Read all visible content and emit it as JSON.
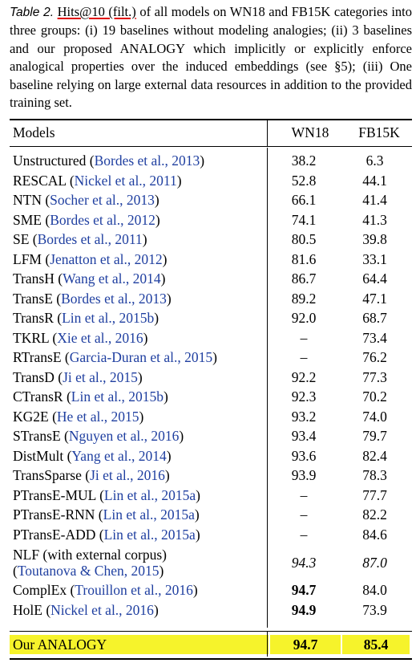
{
  "caption": {
    "label": "Table 2.",
    "metric": "Hits@10 (filt.)",
    "text": " of all models on WN18 and FB15K categories into three groups: (i) 19 baselines without modeling analogies; (ii) 3 baselines and our proposed ANALOGY which implicitly or explicitly enforce analogical properties over the induced embeddings (see §5); (iii) One baseline relying on large external data resources in addition to the provided training set."
  },
  "table": {
    "headers": {
      "models": "Models",
      "wn18": "WN18",
      "fb15k": "FB15K"
    },
    "rows": [
      {
        "name": "Unstructured (",
        "cite": "Bordes et al., 2013",
        "close": ")",
        "wn18": "38.2",
        "fb15k": "6.3"
      },
      {
        "name": "RESCAL (",
        "cite": "Nickel et al., 2011",
        "close": ")",
        "wn18": "52.8",
        "fb15k": "44.1"
      },
      {
        "name": "NTN (",
        "cite": "Socher et al., 2013",
        "close": ")",
        "wn18": "66.1",
        "fb15k": "41.4"
      },
      {
        "name": "SME (",
        "cite": "Bordes et al., 2012",
        "close": ")",
        "wn18": "74.1",
        "fb15k": "41.3"
      },
      {
        "name": "SE (",
        "cite": "Bordes et al., 2011",
        "close": ")",
        "wn18": "80.5",
        "fb15k": "39.8"
      },
      {
        "name": "LFM (",
        "cite": "Jenatton et al., 2012",
        "close": ")",
        "wn18": "81.6",
        "fb15k": "33.1"
      },
      {
        "name": "TransH (",
        "cite": "Wang et al., 2014",
        "close": ")",
        "wn18": "86.7",
        "fb15k": "64.4"
      },
      {
        "name": "TransE (",
        "cite": "Bordes et al., 2013",
        "close": ")",
        "wn18": "89.2",
        "fb15k": "47.1"
      },
      {
        "name": "TransR (",
        "cite": "Lin et al., 2015b",
        "close": ")",
        "wn18": "92.0",
        "fb15k": "68.7"
      },
      {
        "name": "TKRL (",
        "cite": "Xie et al., 2016",
        "close": ")",
        "wn18": "–",
        "fb15k": "73.4"
      },
      {
        "name": "RTransE (",
        "cite": "Garcia-Duran et al., 2015",
        "close": ")",
        "wn18": "–",
        "fb15k": "76.2"
      },
      {
        "name": "TransD (",
        "cite": "Ji et al., 2015",
        "close": ")",
        "wn18": "92.2",
        "fb15k": "77.3"
      },
      {
        "name": "CTransR (",
        "cite": "Lin et al., 2015b",
        "close": ")",
        "wn18": "92.3",
        "fb15k": "70.2"
      },
      {
        "name": "KG2E (",
        "cite": "He et al., 2015",
        "close": ")",
        "wn18": "93.2",
        "fb15k": "74.0"
      },
      {
        "name": "STransE (",
        "cite": "Nguyen et al., 2016",
        "close": ")",
        "wn18": "93.4",
        "fb15k": "79.7"
      },
      {
        "name": "DistMult (",
        "cite": "Yang et al., 2014",
        "close": ")",
        "wn18": "93.6",
        "fb15k": "82.4"
      },
      {
        "name": "TransSparse (",
        "cite": "Ji et al., 2016",
        "close": ")",
        "wn18": "93.9",
        "fb15k": "78.3"
      },
      {
        "name": "PTransE-MUL (",
        "cite": "Lin et al., 2015a",
        "close": ")",
        "wn18": "–",
        "fb15k": "77.7"
      },
      {
        "name": "PTransE-RNN (",
        "cite": "Lin et al., 2015a",
        "close": ")",
        "wn18": "–",
        "fb15k": "82.2"
      },
      {
        "name": "PTransE-ADD (",
        "cite": "Lin et al., 2015a",
        "close": ")",
        "wn18": "–",
        "fb15k": "84.6"
      }
    ],
    "nlf": {
      "line1": "NLF (with external corpus)",
      "open": "(",
      "cite": "Toutanova & Chen, 2015",
      "close": ")",
      "wn18": "94.3",
      "fb15k": "87.0"
    },
    "complex": {
      "name": "ComplEx (",
      "cite": "Trouillon et al., 2016",
      "close": ")",
      "wn18": "94.7",
      "fb15k": "84.0"
    },
    "hole": {
      "name": "HolE (",
      "cite": "Nickel et al., 2016",
      "close": ")",
      "wn18": "94.9",
      "fb15k": "73.9"
    },
    "ours": {
      "name": "Our ANALOGY",
      "wn18": "94.7",
      "fb15k": "85.4"
    }
  },
  "colors": {
    "citation": "#1f3fa0",
    "highlight": "#f6f32b",
    "underline": "#e00000"
  }
}
